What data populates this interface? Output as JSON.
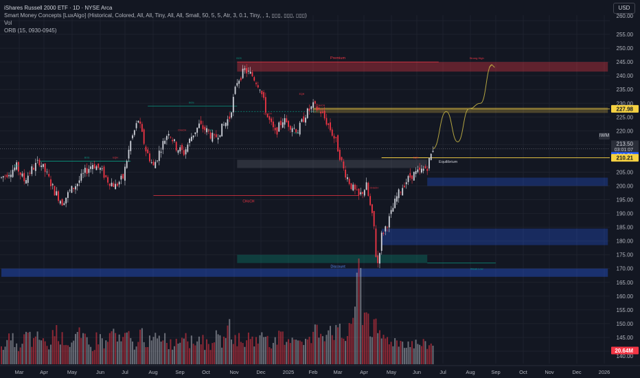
{
  "legend": {
    "title": "iShares Russell 2000 ETF · 1D · NYSE Arca",
    "indicator1": "Smart Money Concepts [LuxAlgo] (Historical, Colored, All, All, Tiny, All, All, Small, 50, 5, 5, Atr, 3, 0.1, Tiny, , 1, ▯▯▯, ▯▯▯, ▯▯▯)",
    "indicator2": "Vol",
    "indicator3": "ORB (15, 0930-0945)"
  },
  "currency_button": "USD",
  "symbol_tag": "IWM",
  "colors": {
    "background": "#131722",
    "up": "#d1d4dc",
    "down": "#f23645",
    "bos": "#089981",
    "choch": "#f23645",
    "premium": "#f23645",
    "discount": "#2962ff",
    "equilibrium": "#787b86",
    "volume_up": "#b2b5be",
    "volume_down": "#f23645",
    "price_tag_blue": "#2962ff",
    "price_tag_yellow": "#f5d142",
    "projection": "#b5a642"
  },
  "chart_data": {
    "type": "candlestick",
    "x_ticks": [
      "Mar",
      "Apr",
      "May",
      "Jun",
      "Jul",
      "Aug",
      "Sep",
      "Oct",
      "Nov",
      "Dec",
      "2025",
      "Feb",
      "Mar",
      "Apr",
      "May",
      "Jun",
      "Jul",
      "Aug",
      "Sep",
      "Oct",
      "Nov",
      "Dec",
      "2026"
    ],
    "y_ticks": [
      140,
      145,
      150,
      155,
      160,
      165,
      170,
      175,
      180,
      185,
      190,
      195,
      200,
      205,
      210,
      215,
      220,
      225,
      230,
      235,
      240,
      245,
      250,
      255,
      260
    ],
    "ylim": [
      138,
      262
    ],
    "price_path": [
      [
        0,
        203
      ],
      [
        4,
        205
      ],
      [
        8,
        207
      ],
      [
        12,
        202
      ],
      [
        16,
        206
      ],
      [
        20,
        209
      ],
      [
        24,
        204
      ],
      [
        28,
        198
      ],
      [
        32,
        194
      ],
      [
        36,
        198
      ],
      [
        40,
        201
      ],
      [
        44,
        205
      ],
      [
        48,
        208
      ],
      [
        52,
        206
      ],
      [
        56,
        202
      ],
      [
        60,
        200
      ],
      [
        64,
        203
      ],
      [
        68,
        216
      ],
      [
        72,
        224
      ],
      [
        76,
        213
      ],
      [
        80,
        207
      ],
      [
        84,
        214
      ],
      [
        88,
        220
      ],
      [
        92,
        214
      ],
      [
        96,
        212
      ],
      [
        100,
        218
      ],
      [
        104,
        222
      ],
      [
        108,
        220
      ],
      [
        112,
        217
      ],
      [
        116,
        221
      ],
      [
        120,
        225
      ],
      [
        124,
        238
      ],
      [
        128,
        242
      ],
      [
        132,
        240
      ],
      [
        136,
        236
      ],
      [
        140,
        225
      ],
      [
        144,
        219
      ],
      [
        148,
        224
      ],
      [
        152,
        222
      ],
      [
        156,
        220
      ],
      [
        160,
        226
      ],
      [
        164,
        229
      ],
      [
        168,
        227
      ],
      [
        172,
        222
      ],
      [
        176,
        216
      ],
      [
        180,
        206
      ],
      [
        184,
        200
      ],
      [
        188,
        196
      ],
      [
        192,
        200
      ],
      [
        196,
        185
      ],
      [
        197,
        175
      ],
      [
        198,
        172
      ],
      [
        200,
        182
      ],
      [
        204,
        188
      ],
      [
        208,
        196
      ],
      [
        212,
        201
      ],
      [
        216,
        204
      ],
      [
        220,
        205
      ],
      [
        224,
        207
      ],
      [
        227,
        213.5
      ]
    ],
    "volume_millions": [
      22,
      26,
      18,
      30,
      24,
      28,
      20,
      35,
      27,
      23,
      31,
      26,
      19,
      28,
      22,
      34,
      25,
      29,
      21,
      33,
      24,
      27,
      30,
      22,
      26,
      35,
      24,
      28,
      21,
      29,
      25,
      38,
      27,
      23,
      30,
      26,
      32,
      24,
      28,
      22,
      31,
      27,
      25,
      36,
      33,
      40,
      34,
      29,
      48,
      98,
      55,
      38,
      30,
      27,
      25,
      24,
      23,
      22,
      21,
      20.64
    ],
    "price_labels": [
      {
        "value": 227.98,
        "label": "227.98",
        "color": "yellow"
      },
      {
        "value": 213.5,
        "label": "213.50",
        "color": "blue"
      },
      {
        "value": 210.21,
        "label": "210.21",
        "color": "yellow"
      },
      {
        "value": 20.64,
        "label": "20.64M",
        "color": "red"
      }
    ],
    "current_price": "213.50",
    "countdown": "03:01:07",
    "annotations": {
      "premium": "Premium",
      "discount": "Discount",
      "equilibrium": "Equilibrium",
      "strong_high": "Strong High",
      "weak_low": "Weak Low",
      "bos": "BOS",
      "choch": "CHoCH",
      "eqh": "EQH",
      "eql": "EQL"
    },
    "zones": [
      {
        "kind": "premium",
        "from_idx": 124,
        "to_idx": 319,
        "y1": 241.5,
        "y2": 245
      },
      {
        "kind": "supply",
        "from_idx": 164,
        "to_idx": 319,
        "y1": 226.5,
        "y2": 228.5
      },
      {
        "kind": "equilibrium",
        "from_idx": 124,
        "to_idx": 224,
        "y1": 206.5,
        "y2": 209.5
      },
      {
        "kind": "demand",
        "from_idx": 224,
        "to_idx": 319,
        "y1": 200,
        "y2": 203
      },
      {
        "kind": "demand",
        "from_idx": 200,
        "to_idx": 319,
        "y1": 178.5,
        "y2": 184.5
      },
      {
        "kind": "discount-green",
        "from_idx": 124,
        "to_idx": 224,
        "y1": 172,
        "y2": 175
      },
      {
        "kind": "discount",
        "from_idx": 0,
        "to_idx": 319,
        "y1": 167,
        "y2": 170
      }
    ],
    "projection": [
      [
        227,
        213.5
      ],
      [
        234,
        227
      ],
      [
        240,
        216
      ],
      [
        246,
        228
      ],
      [
        252,
        230
      ],
      [
        258,
        244
      ]
    ]
  }
}
